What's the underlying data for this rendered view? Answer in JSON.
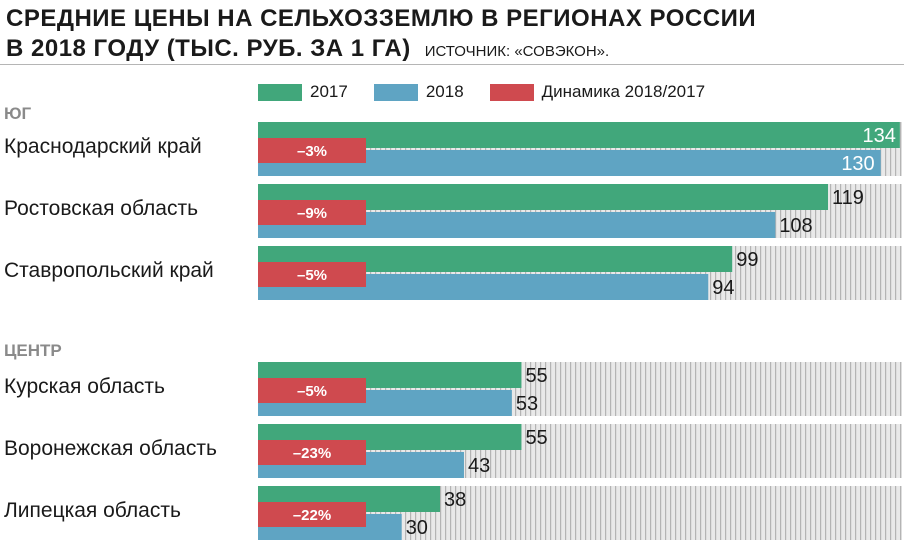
{
  "header": {
    "title_line1": "СРЕДНИЕ ЦЕНЫ НА СЕЛЬХОЗЗЕМЛЮ В РЕГИОНАХ РОССИИ",
    "title_line2": "В 2018 ГОДУ (ТЫС. РУБ. ЗА 1 ГА)",
    "source": "ИСТОЧНИК: «СОВЭКОН»."
  },
  "legend": [
    {
      "label": "2017",
      "color": "#41a77b"
    },
    {
      "label": "2018",
      "color": "#5fa4c3"
    },
    {
      "label": "Динамика 2018/2017",
      "color": "#cf4a4f"
    }
  ],
  "chart_data": {
    "type": "bar",
    "orientation": "horizontal",
    "xlim": [
      0,
      140
    ],
    "groups": [
      {
        "name": "ЮГ",
        "categories": [
          "Краснодарский край",
          "Ростовская область",
          "Ставропольский край"
        ],
        "series": [
          {
            "name": "2017",
            "values": [
              134,
              119,
              99
            ]
          },
          {
            "name": "2018",
            "values": [
              130,
              108,
              94
            ]
          },
          {
            "name": "Динамика 2018/2017",
            "values": [
              "–3%",
              "–9%",
              "–5%"
            ]
          }
        ]
      },
      {
        "name": "ЦЕНТР",
        "categories": [
          "Курская область",
          "Воронежская область",
          "Липецкая область"
        ],
        "series": [
          {
            "name": "2017",
            "values": [
              55,
              55,
              38
            ]
          },
          {
            "name": "2018",
            "values": [
              53,
              43,
              30
            ]
          },
          {
            "name": "Динамика 2018/2017",
            "values": [
              "–5%",
              "–23%",
              "–22%"
            ]
          }
        ]
      }
    ],
    "colors": {
      "y2017": "#41a77b",
      "y2018": "#5fa4c3",
      "change": "#cf4a4f",
      "hatch": "#b4b4b4",
      "hatch_bg": "#e9e9e9"
    }
  }
}
